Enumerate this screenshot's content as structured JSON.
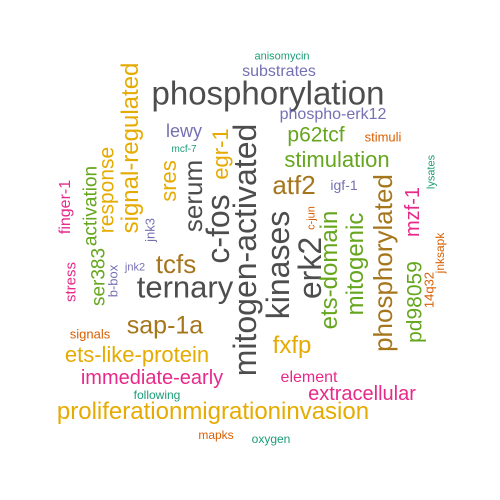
{
  "palette": {
    "dark_gray": "#4d4d4d",
    "brown": "#a6761d",
    "gold": "#e6ab02",
    "green": "#66a61e",
    "magenta": "#e7298a",
    "purple": "#7570b3",
    "orange": "#d95f02",
    "teal": "#1b9e77"
  },
  "words": [
    {
      "text": "phosphorylation",
      "color": "dark_gray"
    },
    {
      "text": "mitogen-activated",
      "color": "dark_gray"
    },
    {
      "text": "ternary",
      "color": "dark_gray"
    },
    {
      "text": "c-fos",
      "color": "dark_gray"
    },
    {
      "text": "kinases",
      "color": "dark_gray"
    },
    {
      "text": "serum",
      "color": "dark_gray"
    },
    {
      "text": "erk2",
      "color": "dark_gray"
    },
    {
      "text": "proliferationmigrationinvasion",
      "color": "gold"
    },
    {
      "text": "signal-regulated",
      "color": "gold"
    },
    {
      "text": "ets-like-protein",
      "color": "gold"
    },
    {
      "text": "fxfp",
      "color": "gold"
    },
    {
      "text": "egr-1",
      "color": "gold"
    },
    {
      "text": "response",
      "color": "gold"
    },
    {
      "text": "sres",
      "color": "gold"
    },
    {
      "text": "tcfs",
      "color": "brown"
    },
    {
      "text": "sap-1a",
      "color": "brown"
    },
    {
      "text": "atf2",
      "color": "brown"
    },
    {
      "text": "phosphorylated",
      "color": "brown"
    },
    {
      "text": "ets-domain",
      "color": "green"
    },
    {
      "text": "mitogenic",
      "color": "green"
    },
    {
      "text": "stimulation",
      "color": "green"
    },
    {
      "text": "p62tcf",
      "color": "green"
    },
    {
      "text": "pd98059",
      "color": "green"
    },
    {
      "text": "activation",
      "color": "green"
    },
    {
      "text": "ser383",
      "color": "green"
    },
    {
      "text": "immediate-early",
      "color": "magenta"
    },
    {
      "text": "extracellular",
      "color": "magenta"
    },
    {
      "text": "element",
      "color": "magenta"
    },
    {
      "text": "finger-1",
      "color": "magenta"
    },
    {
      "text": "mzf-1",
      "color": "magenta"
    },
    {
      "text": "stress",
      "color": "magenta"
    },
    {
      "text": "lewy",
      "color": "purple"
    },
    {
      "text": "substrates",
      "color": "purple"
    },
    {
      "text": "phospho-erk12",
      "color": "purple"
    },
    {
      "text": "igf-1",
      "color": "purple"
    },
    {
      "text": "jnk3",
      "color": "purple"
    },
    {
      "text": "b-box",
      "color": "purple"
    },
    {
      "text": "jnk2",
      "color": "purple"
    },
    {
      "text": "stimuli",
      "color": "orange"
    },
    {
      "text": "c-jun",
      "color": "orange"
    },
    {
      "text": "jnksapk",
      "color": "orange"
    },
    {
      "text": "14q32",
      "color": "orange"
    },
    {
      "text": "signals",
      "color": "orange"
    },
    {
      "text": "mapks",
      "color": "orange"
    },
    {
      "text": "anisomycin",
      "color": "teal"
    },
    {
      "text": "mcf-7",
      "color": "teal"
    },
    {
      "text": "lysates",
      "color": "teal"
    },
    {
      "text": "following",
      "color": "teal"
    },
    {
      "text": "oxygen",
      "color": "teal"
    }
  ]
}
